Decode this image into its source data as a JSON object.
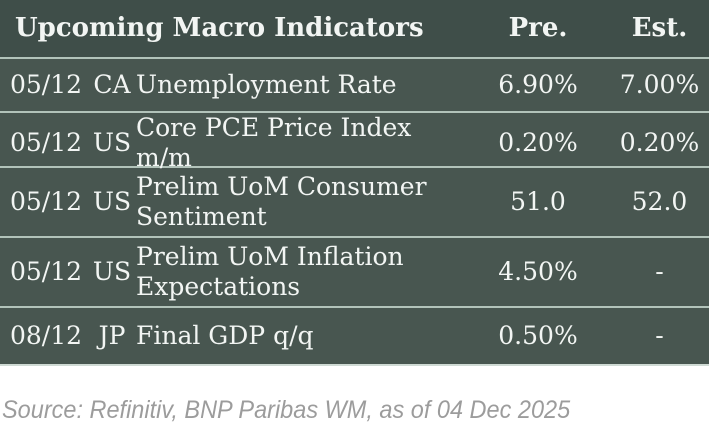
{
  "table": {
    "title": "Upcoming Macro Indicators",
    "col_pre": "Pre.",
    "col_est": "Est.",
    "rows": [
      {
        "date": "05/12",
        "country": "CA",
        "indicator": "Unemployment Rate",
        "pre": "6.90%",
        "est": "7.00%"
      },
      {
        "date": "05/12",
        "country": "US",
        "indicator": "Core PCE Price Index m/m",
        "pre": "0.20%",
        "est": "0.20%"
      },
      {
        "date": "05/12",
        "country": "US",
        "indicator": "Prelim UoM Consumer Sentiment",
        "pre": "51.0",
        "est": "52.0"
      },
      {
        "date": "05/12",
        "country": "US",
        "indicator": "Prelim UoM Inflation Expectations",
        "pre": "4.50%",
        "est": "-"
      },
      {
        "date": "08/12",
        "country": "JP",
        "indicator": "Final GDP q/q",
        "pre": "0.50%",
        "est": "-"
      }
    ]
  },
  "footer": {
    "source": "Source: Refinitiv, BNP Paribas WM, as of 04 Dec 2025"
  },
  "colors": {
    "header_bg": "#3f4e49",
    "row_bg": "#485650",
    "separator": "#b2c3ba",
    "cell_text": "#f2f5f3",
    "source_text": "#9c9c9c"
  },
  "chart_data": {
    "type": "table",
    "title": "Upcoming Macro Indicators",
    "visible_column_headers": [
      "Pre.",
      "Est."
    ],
    "rows": [
      {
        "date": "05/12",
        "country": "CA",
        "indicator": "Unemployment Rate",
        "pre": "6.90%",
        "est": "7.00%"
      },
      {
        "date": "05/12",
        "country": "US",
        "indicator": "Core PCE Price Index m/m",
        "pre": "0.20%",
        "est": "0.20%"
      },
      {
        "date": "05/12",
        "country": "US",
        "indicator": "Prelim UoM Consumer Sentiment",
        "pre": "51.0",
        "est": "52.0"
      },
      {
        "date": "05/12",
        "country": "US",
        "indicator": "Prelim UoM Inflation Expectations",
        "pre": "4.50%",
        "est": "-"
      },
      {
        "date": "08/12",
        "country": "JP",
        "indicator": "Final GDP q/q",
        "pre": "0.50%",
        "est": "-"
      }
    ],
    "source": "Source: Refinitiv, BNP Paribas WM, as of 04 Dec 2025",
    "layout": {
      "header_bg": "#3f4e49",
      "row_bg": "#485650",
      "grid": "horizontal separators only"
    }
  }
}
